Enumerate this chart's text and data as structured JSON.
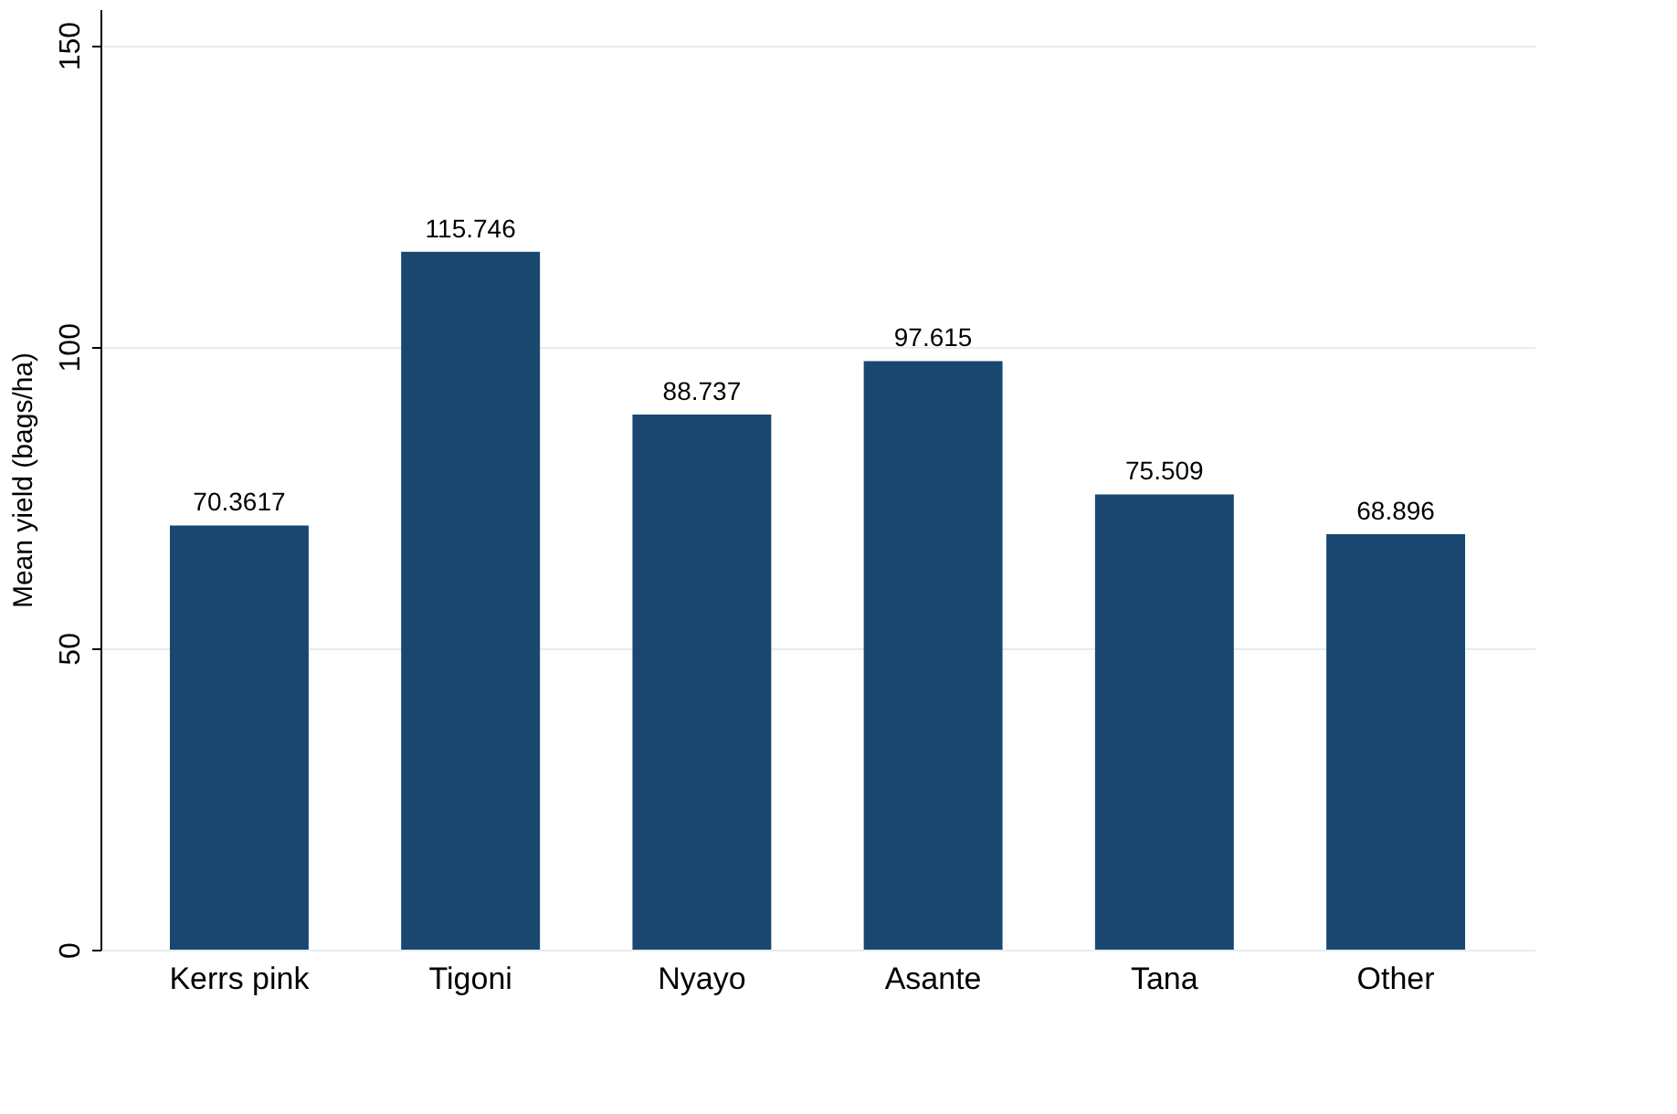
{
  "chart_data": {
    "type": "bar",
    "ylabel": "Mean yield (bags/ha)",
    "categories": [
      "Kerrs pink",
      "Tigoni",
      "Nyayo",
      "Asante",
      "Tana",
      "Other"
    ],
    "values": [
      70.3617,
      115.746,
      88.737,
      97.615,
      75.509,
      68.896
    ],
    "color": "#1a476f",
    "ylim": [
      0,
      156
    ],
    "yticks": [
      0,
      50,
      100,
      150
    ],
    "grid": "y",
    "data_labels": true
  }
}
